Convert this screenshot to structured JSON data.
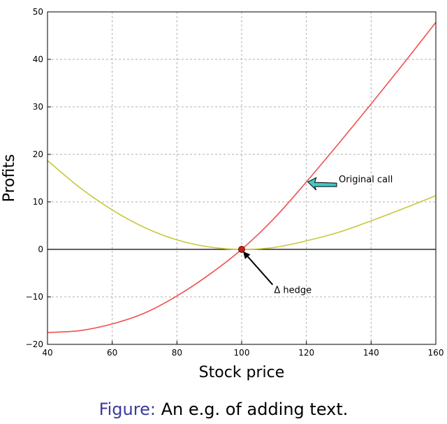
{
  "chart_data": {
    "type": "line",
    "title": "",
    "xlabel": "Stock price",
    "ylabel": "Profits",
    "xlim": [
      40,
      160
    ],
    "ylim": [
      -20,
      50
    ],
    "xticks": [
      40,
      60,
      80,
      100,
      120,
      140,
      160
    ],
    "yticks": [
      -20,
      -10,
      0,
      10,
      20,
      30,
      40,
      50
    ],
    "grid": true,
    "series": [
      {
        "color": "#f05050",
        "x": [
          40,
          50,
          60,
          70,
          80,
          90,
          100,
          110,
          120,
          130,
          140,
          150,
          160
        ],
        "y": [
          -17.5,
          -17.1,
          -15.7,
          -13.4,
          -9.8,
          -5.3,
          0,
          6.5,
          14.2,
          22.3,
          30.6,
          39.1,
          47.8
        ]
      },
      {
        "color": "#c8c83c",
        "x": [
          40,
          50,
          60,
          70,
          80,
          90,
          100,
          110,
          120,
          130,
          140,
          150,
          160
        ],
        "y": [
          18.7,
          13.0,
          8.3,
          4.6,
          2.0,
          0.5,
          0,
          0.4,
          1.8,
          3.6,
          6.0,
          8.6,
          11.3
        ]
      }
    ],
    "highlight_point": {
      "x": 100,
      "y": 0,
      "color": "#c0201a"
    },
    "annotations": [
      {
        "text": "Original call",
        "point": [
          120,
          14.2
        ],
        "text_at": [
          130,
          14.1
        ],
        "arrow_color": "#40c8c8"
      },
      {
        "text": "Δ hedge",
        "point": [
          100,
          0
        ],
        "text_at": [
          110,
          -9.2
        ],
        "arrow_color": "#000000"
      }
    ]
  },
  "caption": {
    "label": "Figure:",
    "text": "An e.g. of adding text."
  }
}
